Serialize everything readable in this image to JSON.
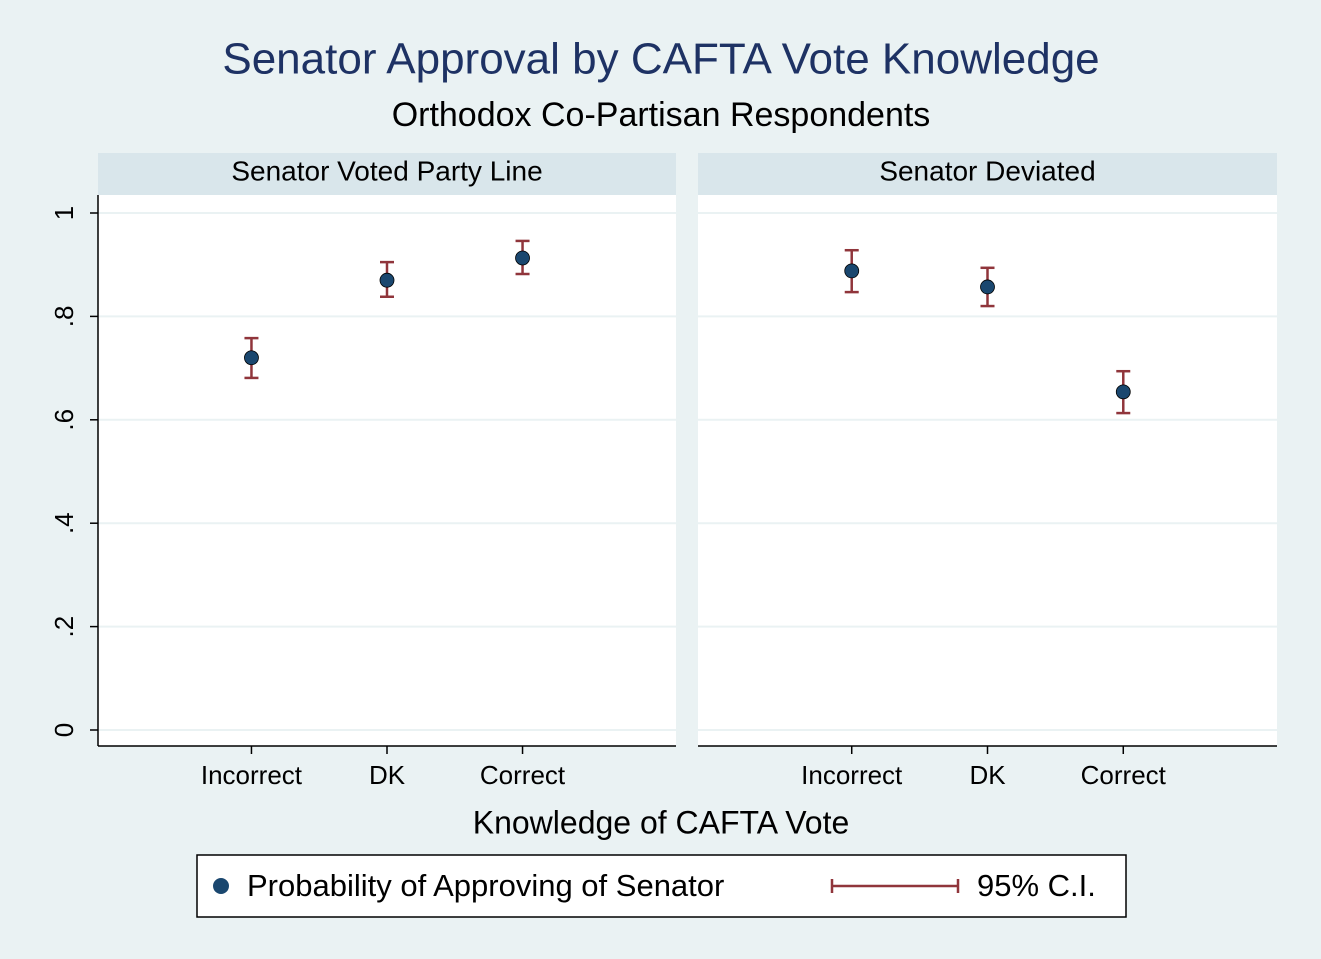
{
  "chart_data": {
    "type": "errorbar",
    "title": "Senator Approval by CAFTA Vote Knowledge",
    "subtitle": "Orthodox Co-Partisan Respondents",
    "xlabel": "Knowledge of CAFTA Vote",
    "point_name": "Probability of Approving of Senator",
    "ci_name": "95% C.I.",
    "point_color": "#1a476f",
    "ci_color": "#90353b",
    "ylim": [
      0,
      1
    ],
    "yticks": [
      0,
      {
        "value": 0.2,
        "label": ".2"
      },
      {
        "value": 0.4,
        "label": ".4"
      },
      {
        "value": 0.6,
        "label": ".6"
      },
      {
        "value": 0.8,
        "label": ".8"
      },
      1
    ],
    "grid": true,
    "panels": [
      {
        "title": "Senator Voted Party Line",
        "categories": [
          "Incorrect",
          "DK",
          "Correct"
        ],
        "values": [
          0.72,
          0.87,
          0.913
        ],
        "lower": [
          0.681,
          0.838,
          0.882
        ],
        "upper": [
          0.758,
          0.905,
          0.946
        ]
      },
      {
        "title": "Senator Deviated",
        "categories": [
          "Incorrect",
          "DK",
          "Correct"
        ],
        "values": [
          0.888,
          0.857,
          0.654
        ],
        "lower": [
          0.847,
          0.82,
          0.613
        ],
        "upper": [
          0.928,
          0.894,
          0.694
        ]
      }
    ]
  }
}
